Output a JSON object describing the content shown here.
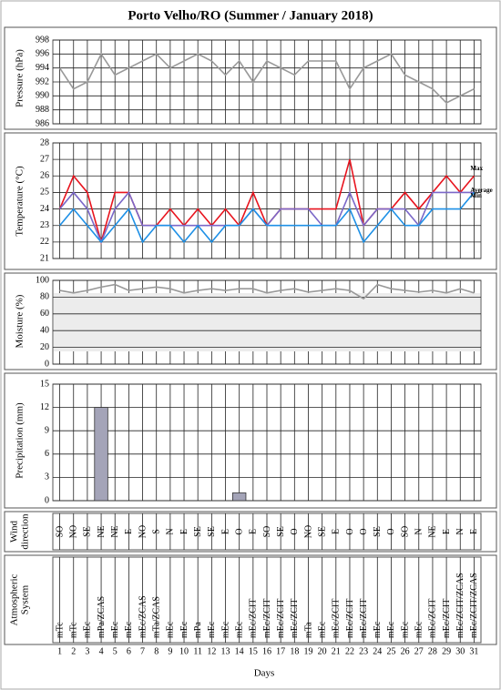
{
  "title": "Porto Velho/RO (Summer / January 2018)",
  "x_label": "Days",
  "days": [
    1,
    2,
    3,
    4,
    5,
    6,
    7,
    8,
    9,
    10,
    11,
    12,
    13,
    14,
    15,
    16,
    17,
    18,
    19,
    20,
    21,
    22,
    23,
    24,
    25,
    26,
    27,
    28,
    29,
    30,
    31
  ],
  "chart_data": [
    {
      "type": "line",
      "y_label": [
        "Pressure (hPa)"
      ],
      "ylim": [
        986,
        998
      ],
      "yticks": [
        986,
        988,
        990,
        992,
        994,
        996,
        998
      ],
      "grid": true,
      "series": [
        {
          "color": "#999999",
          "values": [
            994,
            991,
            992,
            996,
            993,
            994,
            995,
            996,
            994,
            995,
            996,
            995,
            993,
            995,
            992,
            995,
            994,
            993,
            995,
            995,
            995,
            991,
            994,
            995,
            996,
            993,
            992,
            991,
            989,
            990,
            991
          ]
        }
      ]
    },
    {
      "type": "line",
      "y_label": [
        "Temperature (°C)"
      ],
      "ylim": [
        21,
        28
      ],
      "yticks": [
        21,
        22,
        23,
        24,
        25,
        26,
        27,
        28
      ],
      "grid": true,
      "series": [
        {
          "name": "Max",
          "color": "#e8141e",
          "values": [
            24,
            26,
            25,
            22,
            25,
            25,
            23,
            23,
            24,
            23,
            24,
            23,
            24,
            23,
            25,
            23,
            24,
            24,
            24,
            24,
            24,
            27,
            23,
            24,
            24,
            25,
            24,
            25,
            26,
            25,
            26
          ]
        },
        {
          "name": "Average",
          "color": "#7b68c8",
          "values": [
            24,
            25,
            24,
            22,
            24,
            25,
            23,
            23,
            23,
            23,
            23,
            23,
            23,
            23,
            24,
            23,
            24,
            24,
            24,
            23,
            23,
            25,
            23,
            24,
            24,
            24,
            23,
            25,
            25,
            25,
            25
          ]
        },
        {
          "name": "Min",
          "color": "#1e90e6",
          "values": [
            23,
            24,
            23,
            22,
            23,
            24,
            22,
            23,
            23,
            22,
            23,
            22,
            23,
            23,
            24,
            23,
            23,
            23,
            23,
            23,
            23,
            24,
            22,
            23,
            24,
            23,
            23,
            24,
            24,
            24,
            25
          ]
        }
      ]
    },
    {
      "type": "line",
      "y_label": [
        "Moisture (%)"
      ],
      "ylim": [
        0,
        100
      ],
      "yticks": [
        0,
        20,
        40,
        60,
        80,
        100
      ],
      "grid": true,
      "shaded": true,
      "series": [
        {
          "color": "#999999",
          "values": [
            88,
            85,
            88,
            92,
            95,
            88,
            90,
            92,
            90,
            85,
            88,
            90,
            88,
            90,
            90,
            85,
            88,
            90,
            86,
            88,
            90,
            88,
            78,
            95,
            90,
            88,
            86,
            88,
            85,
            90,
            85
          ]
        }
      ]
    },
    {
      "type": "bar",
      "y_label": [
        "Precipitation (mm)"
      ],
      "ylim": [
        0,
        15
      ],
      "yticks": [
        0,
        3,
        6,
        9,
        12,
        15
      ],
      "grid": true,
      "color": "#a4a4b8",
      "values": [
        0,
        0,
        0,
        12,
        0,
        0,
        0,
        0,
        0,
        0,
        0,
        0,
        0,
        1,
        0,
        0,
        0,
        0,
        0,
        0,
        0,
        0,
        0,
        0,
        0,
        0,
        0,
        0,
        0,
        0,
        0
      ]
    },
    {
      "type": "text-row",
      "y_label": [
        "Wind",
        "direction"
      ],
      "values": [
        "SO",
        "NO",
        "SE",
        "NE",
        "NE",
        "E",
        "NO",
        "S",
        "N",
        "E",
        "SE",
        "SE",
        "E",
        "O",
        "E",
        "SO",
        "SE",
        "O",
        "NO",
        "SE",
        "E",
        "O",
        "O",
        "SE",
        "O",
        "SO",
        "N",
        "NE",
        "E",
        "N",
        "E"
      ]
    },
    {
      "type": "text-row",
      "y_label": [
        "Atmospheric",
        "System"
      ],
      "anchor": "bottom",
      "values": [
        "mTc",
        "mTc",
        "mEc",
        "mPa/ZCAS",
        "mEc",
        "mEc",
        "mEc/ZCAS",
        "mTa/ZCAS",
        "mEc",
        "mEc",
        "mPa",
        "mEc",
        "mEc",
        "mEc",
        "mEc/ZCIT",
        "mEc/ZCIT",
        "mEc/ZCIT",
        "mEc/ZCIT",
        "mTa",
        "mEc",
        "mEc/ZCIT",
        "mEc/ZCIT",
        "mEc/ZCIT",
        "mEc",
        "mEc",
        "mEc",
        "mEc",
        "mEc/ZCIT",
        "mEc/ZCIT",
        "mEc/ZCIT/ZCAS",
        "mEc/ZCIT/ZCAS"
      ]
    }
  ]
}
